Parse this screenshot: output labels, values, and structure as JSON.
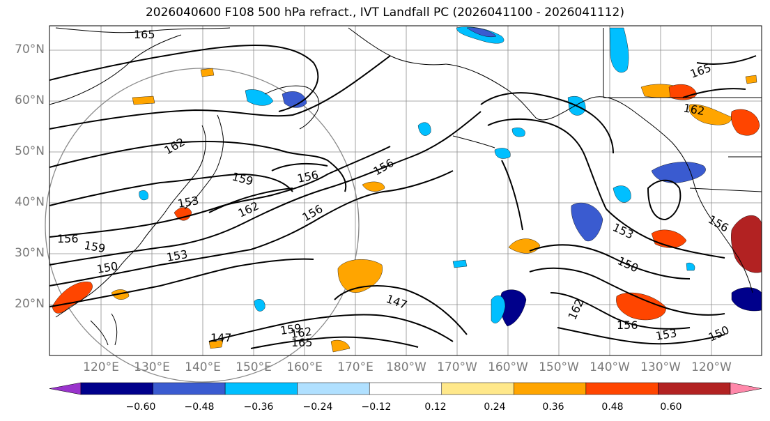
{
  "title": "2026040600 F108 500 hPa refract., IVT Landfall PC (2026041100 - 2026041112)",
  "map": {
    "lat_labels": [
      "70°N",
      "60°N",
      "50°N",
      "40°N",
      "30°N",
      "20°N"
    ],
    "lon_labels": [
      "120°E",
      "130°E",
      "140°E",
      "150°E",
      "160°E",
      "170°E",
      "180°W",
      "170°W",
      "160°W",
      "150°W",
      "140°W",
      "130°W",
      "120°W"
    ],
    "contour_labels": [
      "165",
      "162",
      "159",
      "156",
      "156",
      "153",
      "162",
      "156",
      "159",
      "156",
      "153",
      "150",
      "147",
      "147",
      "159",
      "162",
      "165",
      "162",
      "156",
      "153",
      "150",
      "153",
      "165",
      "162",
      "156",
      "150"
    ],
    "land_color": "#000000",
    "contour_color": "#000000",
    "grid_color": "#8c8c8c"
  },
  "colorbar": {
    "tick_labels": [
      "−0.60",
      "−0.48",
      "−0.36",
      "−0.24",
      "−0.12",
      "0.12",
      "0.24",
      "0.36",
      "0.48",
      "0.60"
    ],
    "colors": [
      "#9933cc",
      "#00008b",
      "#3a5bd0",
      "#00bfff",
      "#b0e0ff",
      "#ffffff",
      "#ffe88a",
      "#ffa500",
      "#ff4500",
      "#b22222",
      "#ff88aa"
    ]
  }
}
